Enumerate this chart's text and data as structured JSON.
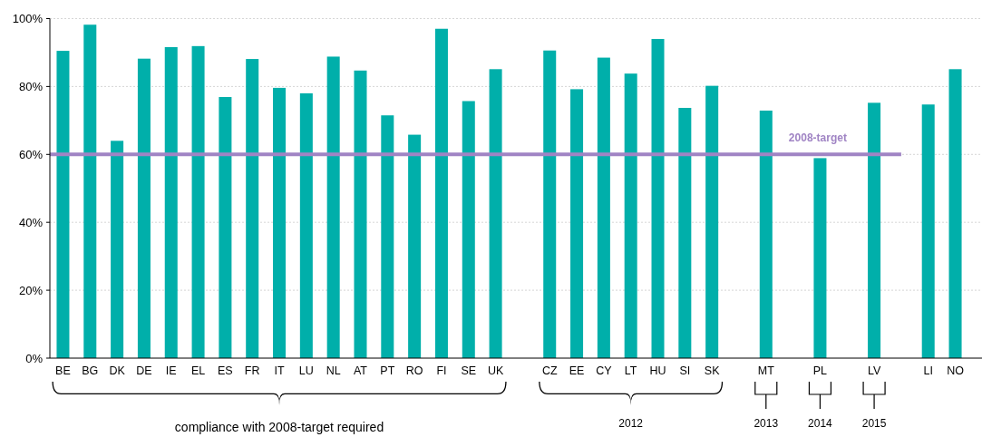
{
  "chart_data": {
    "type": "bar",
    "categories": [
      "BE",
      "BG",
      "DK",
      "DE",
      "IE",
      "EL",
      "ES",
      "FR",
      "IT",
      "LU",
      "NL",
      "AT",
      "PT",
      "RO",
      "FI",
      "SE",
      "UK",
      null,
      "CZ",
      "EE",
      "CY",
      "LT",
      "HU",
      "SI",
      "SK",
      null,
      "MT",
      null,
      "PL",
      null,
      "LV",
      null,
      "LI",
      "NO"
    ],
    "values": [
      90.5,
      98.2,
      64.0,
      88.2,
      91.6,
      91.9,
      76.9,
      88.1,
      79.6,
      78.0,
      88.8,
      84.7,
      71.5,
      65.8,
      97.0,
      75.7,
      85.1,
      null,
      90.6,
      79.2,
      88.5,
      83.8,
      94.0,
      73.7,
      80.2,
      null,
      72.9,
      null,
      58.9,
      null,
      75.2,
      null,
      74.7,
      85.1
    ],
    "color": "#00afaa",
    "ylim": [
      0,
      100
    ],
    "yticks": [
      {
        "value": 0,
        "label": "0%"
      },
      {
        "value": 20,
        "label": "20%"
      },
      {
        "value": 40,
        "label": "40%"
      },
      {
        "value": 60,
        "label": "60%"
      },
      {
        "value": 80,
        "label": "80%"
      },
      {
        "value": 100,
        "label": "100%"
      }
    ],
    "grid": "y",
    "ref_lines": [
      {
        "axis": "y",
        "value": 60,
        "label": "2008-target",
        "color": "#a084c4"
      }
    ],
    "annotations": [
      "compliance with 2008-target required",
      "2012",
      "2013",
      "2014",
      "2015"
    ]
  }
}
